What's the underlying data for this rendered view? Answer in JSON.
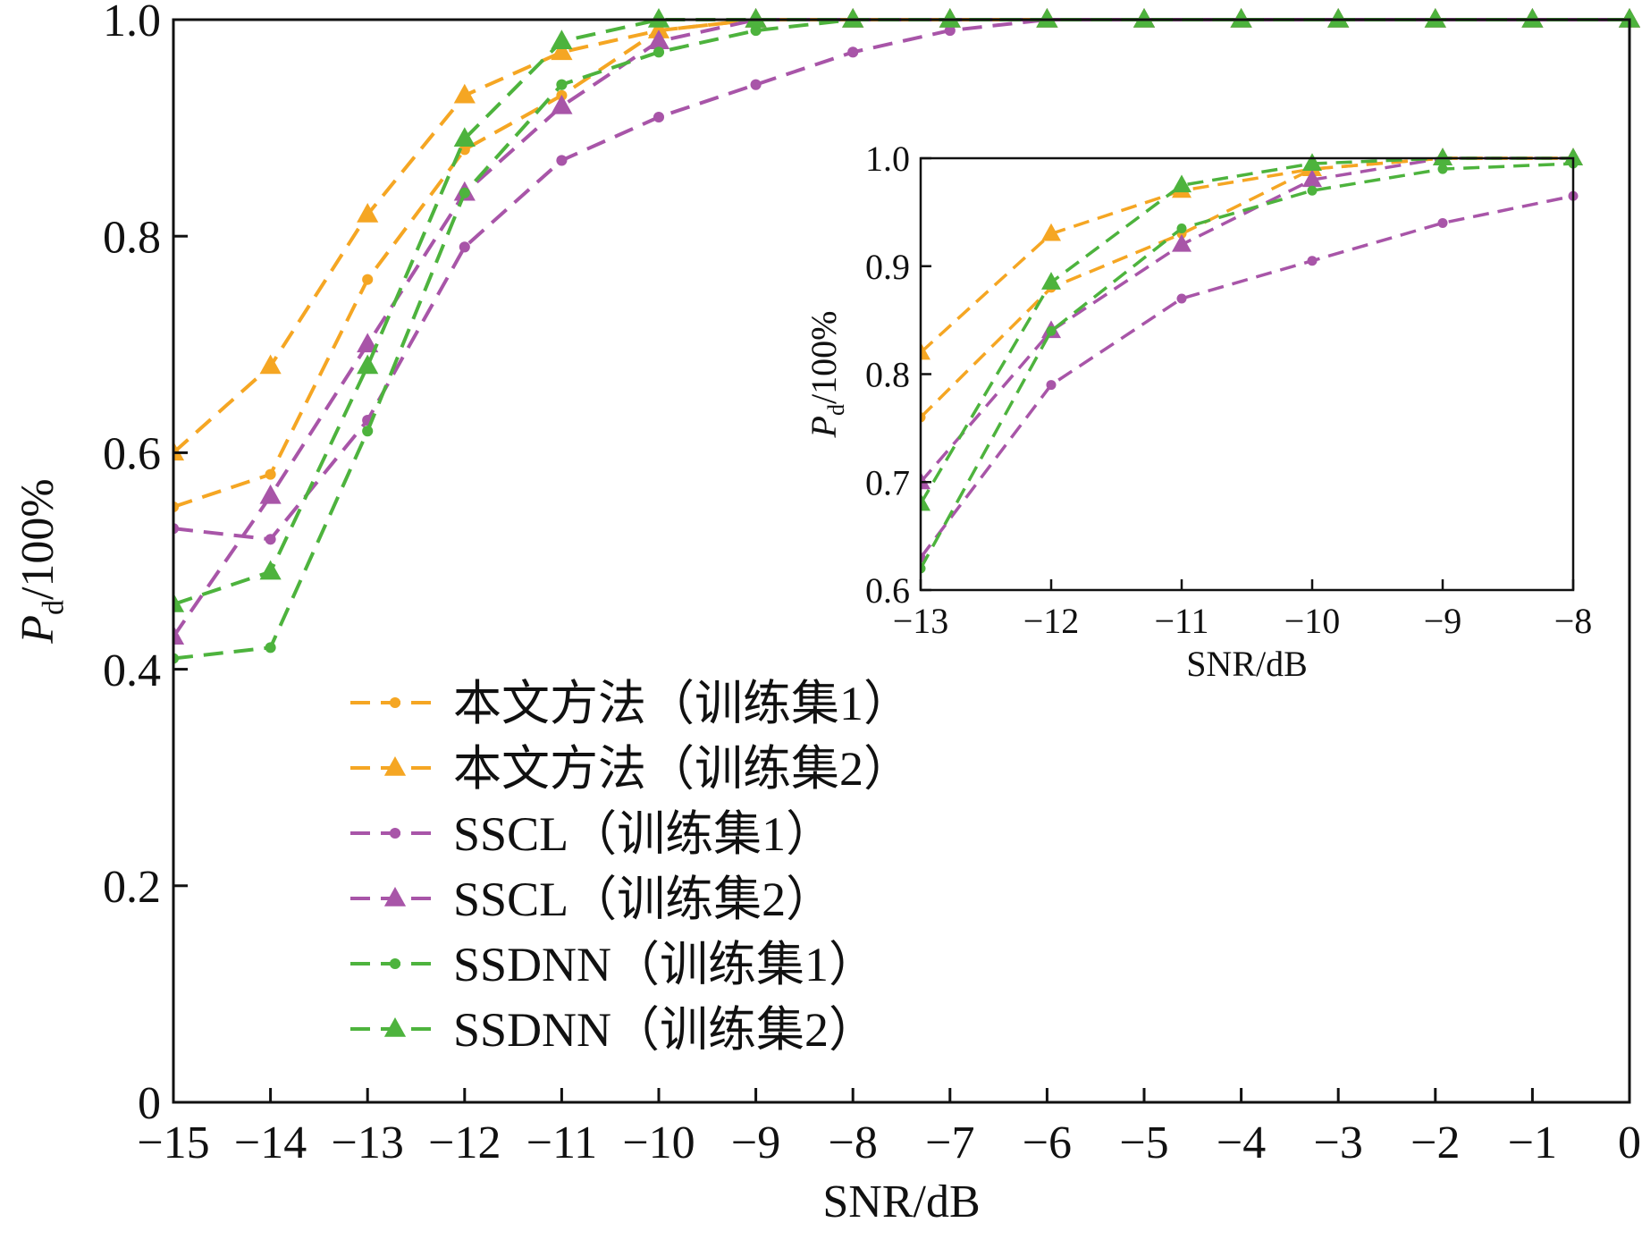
{
  "chart_data": [
    {
      "type": "line",
      "xlabel": "SNR/dB",
      "ylabel_main": "P",
      "ylabel_sub": "d",
      "ylabel_rest": "/100%",
      "xlim": [
        -15,
        0
      ],
      "ylim": [
        0,
        1
      ],
      "xticks": [
        -15,
        -14,
        -13,
        -12,
        -11,
        -10,
        -9,
        -8,
        -7,
        -6,
        -5,
        -4,
        -3,
        -2,
        -1,
        0
      ],
      "xtick_labels": [
        "−15",
        "−14",
        "−13",
        "−12",
        "−11",
        "−10",
        "−9",
        "−8",
        "−7",
        "−6",
        "−5",
        "−4",
        "−3",
        "−2",
        "−1",
        "0"
      ],
      "yticks": [
        0,
        0.2,
        0.4,
        0.6,
        0.8,
        1.0
      ],
      "ytick_labels": [
        "0",
        "0.2",
        "0.4",
        "0.6",
        "0.8",
        "1.0"
      ],
      "grid": false,
      "legend_position": "lower-center",
      "x": [
        -15,
        -14,
        -13,
        -12,
        -11,
        -10,
        -9,
        -8,
        -7,
        -6,
        -5,
        -4,
        -3,
        -2,
        -1,
        0
      ],
      "series": [
        {
          "name": "本文方法（训练集1）",
          "color": "#f5a623",
          "marker": "circle",
          "values": [
            0.55,
            0.58,
            0.76,
            0.88,
            0.93,
            0.99,
            1.0,
            1.0,
            1.0,
            1.0,
            1.0,
            1.0,
            1.0,
            1.0,
            1.0,
            1.0
          ]
        },
        {
          "name": "本文方法（训练集2）",
          "color": "#f5a623",
          "marker": "triangle",
          "values": [
            0.6,
            0.68,
            0.82,
            0.93,
            0.97,
            0.99,
            1.0,
            1.0,
            1.0,
            1.0,
            1.0,
            1.0,
            1.0,
            1.0,
            1.0,
            1.0
          ]
        },
        {
          "name": "SSCL（训练集1）",
          "color": "#a855a8",
          "marker": "circle",
          "values": [
            0.53,
            0.52,
            0.63,
            0.79,
            0.87,
            0.91,
            0.94,
            0.97,
            0.99,
            1.0,
            1.0,
            1.0,
            1.0,
            1.0,
            1.0,
            1.0
          ]
        },
        {
          "name": "SSCL（训练集2）",
          "color": "#a855a8",
          "marker": "triangle",
          "values": [
            0.43,
            0.56,
            0.7,
            0.84,
            0.92,
            0.98,
            1.0,
            1.0,
            1.0,
            1.0,
            1.0,
            1.0,
            1.0,
            1.0,
            1.0,
            1.0
          ]
        },
        {
          "name": "SSDNN（训练集1）",
          "color": "#4db33d",
          "marker": "circle",
          "values": [
            0.41,
            0.42,
            0.62,
            0.84,
            0.94,
            0.97,
            0.99,
            1.0,
            1.0,
            1.0,
            1.0,
            1.0,
            1.0,
            1.0,
            1.0,
            1.0
          ]
        },
        {
          "name": "SSDNN（训练集2）",
          "color": "#4db33d",
          "marker": "triangle",
          "values": [
            0.46,
            0.49,
            0.68,
            0.89,
            0.98,
            1.0,
            1.0,
            1.0,
            1.0,
            1.0,
            1.0,
            1.0,
            1.0,
            1.0,
            1.0,
            1.0
          ]
        }
      ]
    },
    {
      "type": "line",
      "xlabel": "SNR/dB",
      "ylabel_main": "P",
      "ylabel_sub": "d",
      "ylabel_rest": "/100%",
      "xlim": [
        -13,
        -8
      ],
      "ylim": [
        0.6,
        1.0
      ],
      "xticks": [
        -13,
        -12,
        -11,
        -10,
        -9,
        -8
      ],
      "xtick_labels": [
        "−13",
        "−12",
        "−11",
        "−10",
        "−9",
        "−8"
      ],
      "yticks": [
        0.6,
        0.7,
        0.8,
        0.9,
        1.0
      ],
      "ytick_labels": [
        "0.6",
        "0.7",
        "0.8",
        "0.9",
        "1.0"
      ],
      "grid": false,
      "x": [
        -13,
        -12,
        -11,
        -10,
        -9,
        -8
      ],
      "series": [
        {
          "color": "#f5a623",
          "marker": "circle",
          "values": [
            0.76,
            0.88,
            0.93,
            0.99,
            1.0,
            1.0
          ]
        },
        {
          "color": "#f5a623",
          "marker": "triangle",
          "values": [
            0.82,
            0.93,
            0.97,
            0.99,
            1.0,
            1.0
          ]
        },
        {
          "color": "#a855a8",
          "marker": "circle",
          "values": [
            0.63,
            0.79,
            0.87,
            0.905,
            0.94,
            0.965
          ]
        },
        {
          "color": "#a855a8",
          "marker": "triangle",
          "values": [
            0.7,
            0.84,
            0.92,
            0.98,
            1.0,
            1.0
          ]
        },
        {
          "color": "#4db33d",
          "marker": "circle",
          "values": [
            0.62,
            0.84,
            0.935,
            0.97,
            0.99,
            0.995
          ]
        },
        {
          "color": "#4db33d",
          "marker": "triangle",
          "values": [
            0.68,
            0.885,
            0.975,
            0.995,
            1.0,
            1.0
          ]
        }
      ]
    }
  ]
}
